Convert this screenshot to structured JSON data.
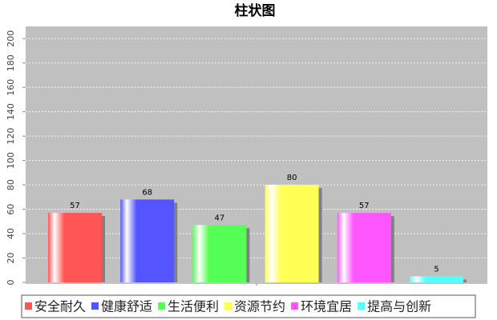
{
  "chart_data": {
    "type": "bar",
    "title": "柱状图",
    "series": [
      {
        "name": "安全耐久",
        "color": "#ff5555",
        "values": [
          57
        ]
      },
      {
        "name": "健康舒适",
        "color": "#5555ff",
        "values": [
          68
        ]
      },
      {
        "name": "生活便利",
        "color": "#55ff55",
        "values": [
          47
        ]
      },
      {
        "name": "资源节约",
        "color": "#ffff55",
        "values": [
          80
        ]
      },
      {
        "name": "环境宜居",
        "color": "#ff55ff",
        "values": [
          57
        ]
      },
      {
        "name": "提高与创新",
        "color": "#55ffff",
        "values": [
          5
        ]
      }
    ],
    "ylim": [
      0,
      210
    ],
    "yticks": [
      0,
      20,
      40,
      60,
      80,
      100,
      120,
      140,
      160,
      180,
      200
    ],
    "grid": true,
    "legend": "bottom"
  }
}
